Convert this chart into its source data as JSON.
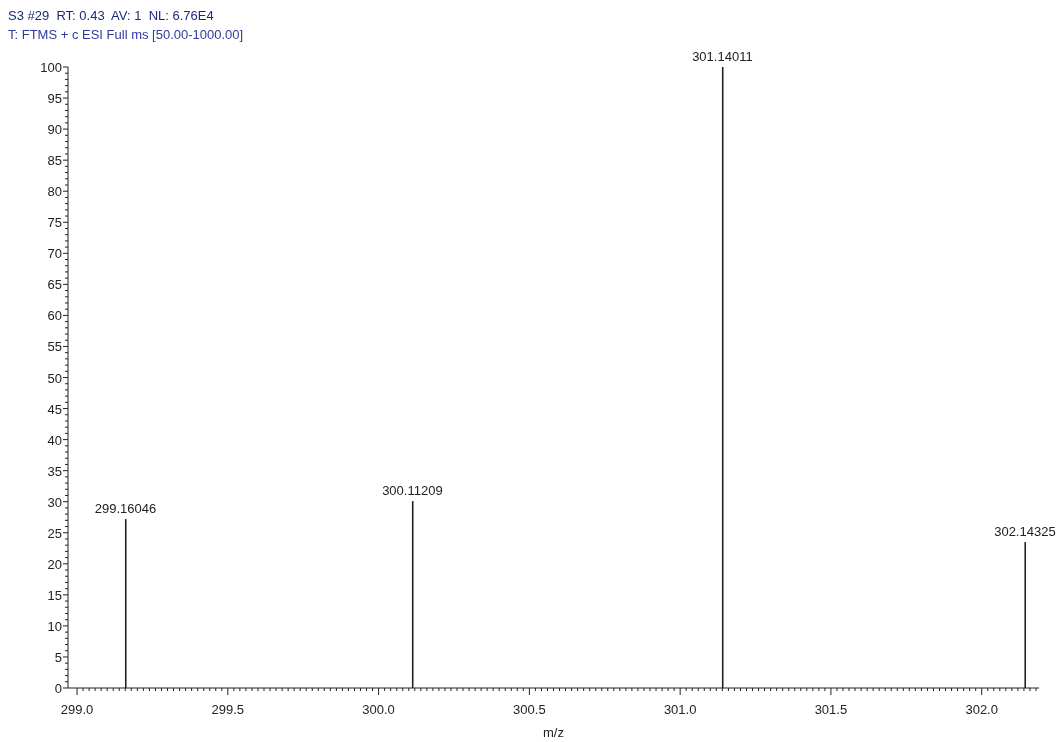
{
  "chart_data": {
    "type": "bar",
    "title": "S3 #29  RT: 0.43  AV: 1  NL: 6.76E4",
    "subtitle": "T: FTMS + c ESI Full ms [50.00-1000.00]",
    "xlabel": "m/z",
    "x": [
      299.16046,
      300.11209,
      301.14011,
      302.14325
    ],
    "values": [
      27.2,
      30.1,
      100,
      23.5
    ],
    "color": "#222222",
    "xlim": [
      298.97,
      302.19
    ],
    "xticks": [
      {
        "value": 299,
        "label": "299.0"
      },
      {
        "value": 299.02,
        "label": null
      },
      {
        "value": 299.04,
        "label": null
      },
      {
        "value": 299.06,
        "label": null
      },
      {
        "value": 299.08,
        "label": null
      },
      {
        "value": 299.1,
        "label": null
      },
      {
        "value": 299.12,
        "label": null
      },
      {
        "value": 299.14,
        "label": null
      },
      {
        "value": 299.16,
        "label": null
      },
      {
        "value": 299.18,
        "label": null
      },
      {
        "value": 299.2,
        "label": null
      },
      {
        "value": 299.22,
        "label": null
      },
      {
        "value": 299.24,
        "label": null
      },
      {
        "value": 299.26,
        "label": null
      },
      {
        "value": 299.28,
        "label": null
      },
      {
        "value": 299.3,
        "label": null
      },
      {
        "value": 299.32,
        "label": null
      },
      {
        "value": 299.34,
        "label": null
      },
      {
        "value": 299.36,
        "label": null
      },
      {
        "value": 299.38,
        "label": null
      },
      {
        "value": 299.4,
        "label": null
      },
      {
        "value": 299.42,
        "label": null
      },
      {
        "value": 299.44,
        "label": null
      },
      {
        "value": 299.46,
        "label": null
      },
      {
        "value": 299.48,
        "label": null
      },
      {
        "value": 299.5,
        "label": "299.5"
      },
      {
        "value": 299.52,
        "label": null
      },
      {
        "value": 299.54,
        "label": null
      },
      {
        "value": 299.56,
        "label": null
      },
      {
        "value": 299.58,
        "label": null
      },
      {
        "value": 299.6,
        "label": null
      },
      {
        "value": 299.62,
        "label": null
      },
      {
        "value": 299.64,
        "label": null
      },
      {
        "value": 299.66,
        "label": null
      },
      {
        "value": 299.68,
        "label": null
      },
      {
        "value": 299.7,
        "label": null
      },
      {
        "value": 299.72,
        "label": null
      },
      {
        "value": 299.74,
        "label": null
      },
      {
        "value": 299.76,
        "label": null
      },
      {
        "value": 299.78,
        "label": null
      },
      {
        "value": 299.8,
        "label": null
      },
      {
        "value": 299.82,
        "label": null
      },
      {
        "value": 299.84,
        "label": null
      },
      {
        "value": 299.86,
        "label": null
      },
      {
        "value": 299.88,
        "label": null
      },
      {
        "value": 299.9,
        "label": null
      },
      {
        "value": 299.92,
        "label": null
      },
      {
        "value": 299.94,
        "label": null
      },
      {
        "value": 299.96,
        "label": null
      },
      {
        "value": 299.98,
        "label": null
      },
      {
        "value": 300,
        "label": "300.0"
      },
      {
        "value": 300.02,
        "label": null
      },
      {
        "value": 300.04,
        "label": null
      },
      {
        "value": 300.06,
        "label": null
      },
      {
        "value": 300.08,
        "label": null
      },
      {
        "value": 300.1,
        "label": null
      },
      {
        "value": 300.12,
        "label": null
      },
      {
        "value": 300.14,
        "label": null
      },
      {
        "value": 300.16,
        "label": null
      },
      {
        "value": 300.18,
        "label": null
      },
      {
        "value": 300.2,
        "label": null
      },
      {
        "value": 300.22,
        "label": null
      },
      {
        "value": 300.24,
        "label": null
      },
      {
        "value": 300.26,
        "label": null
      },
      {
        "value": 300.28,
        "label": null
      },
      {
        "value": 300.3,
        "label": null
      },
      {
        "value": 300.32,
        "label": null
      },
      {
        "value": 300.34,
        "label": null
      },
      {
        "value": 300.36,
        "label": null
      },
      {
        "value": 300.38,
        "label": null
      },
      {
        "value": 300.4,
        "label": null
      },
      {
        "value": 300.42,
        "label": null
      },
      {
        "value": 300.44,
        "label": null
      },
      {
        "value": 300.46,
        "label": null
      },
      {
        "value": 300.48,
        "label": null
      },
      {
        "value": 300.5,
        "label": "300.5"
      },
      {
        "value": 300.52,
        "label": null
      },
      {
        "value": 300.54,
        "label": null
      },
      {
        "value": 300.56,
        "label": null
      },
      {
        "value": 300.58,
        "label": null
      },
      {
        "value": 300.6,
        "label": null
      },
      {
        "value": 300.62,
        "label": null
      },
      {
        "value": 300.64,
        "label": null
      },
      {
        "value": 300.66,
        "label": null
      },
      {
        "value": 300.68,
        "label": null
      },
      {
        "value": 300.7,
        "label": null
      },
      {
        "value": 300.72,
        "label": null
      },
      {
        "value": 300.74,
        "label": null
      },
      {
        "value": 300.76,
        "label": null
      },
      {
        "value": 300.78,
        "label": null
      },
      {
        "value": 300.8,
        "label": null
      },
      {
        "value": 300.82,
        "label": null
      },
      {
        "value": 300.84,
        "label": null
      },
      {
        "value": 300.86,
        "label": null
      },
      {
        "value": 300.88,
        "label": null
      },
      {
        "value": 300.9,
        "label": null
      },
      {
        "value": 300.92,
        "label": null
      },
      {
        "value": 300.94,
        "label": null
      },
      {
        "value": 300.96,
        "label": null
      },
      {
        "value": 300.98,
        "label": null
      },
      {
        "value": 301,
        "label": "301.0"
      },
      {
        "value": 301.02,
        "label": null
      },
      {
        "value": 301.04,
        "label": null
      },
      {
        "value": 301.06,
        "label": null
      },
      {
        "value": 301.08,
        "label": null
      },
      {
        "value": 301.1,
        "label": null
      },
      {
        "value": 301.12,
        "label": null
      },
      {
        "value": 301.14,
        "label": null
      },
      {
        "value": 301.16,
        "label": null
      },
      {
        "value": 301.18,
        "label": null
      },
      {
        "value": 301.2,
        "label": null
      },
      {
        "value": 301.22,
        "label": null
      },
      {
        "value": 301.24,
        "label": null
      },
      {
        "value": 301.26,
        "label": null
      },
      {
        "value": 301.28,
        "label": null
      },
      {
        "value": 301.3,
        "label": null
      },
      {
        "value": 301.32,
        "label": null
      },
      {
        "value": 301.34,
        "label": null
      },
      {
        "value": 301.36,
        "label": null
      },
      {
        "value": 301.38,
        "label": null
      },
      {
        "value": 301.4,
        "label": null
      },
      {
        "value": 301.42,
        "label": null
      },
      {
        "value": 301.44,
        "label": null
      },
      {
        "value": 301.46,
        "label": null
      },
      {
        "value": 301.48,
        "label": null
      },
      {
        "value": 301.5,
        "label": "301.5"
      },
      {
        "value": 301.52,
        "label": null
      },
      {
        "value": 301.54,
        "label": null
      },
      {
        "value": 301.56,
        "label": null
      },
      {
        "value": 301.58,
        "label": null
      },
      {
        "value": 301.6,
        "label": null
      },
      {
        "value": 301.62,
        "label": null
      },
      {
        "value": 301.64,
        "label": null
      },
      {
        "value": 301.66,
        "label": null
      },
      {
        "value": 301.68,
        "label": null
      },
      {
        "value": 301.7,
        "label": null
      },
      {
        "value": 301.72,
        "label": null
      },
      {
        "value": 301.74,
        "label": null
      },
      {
        "value": 301.76,
        "label": null
      },
      {
        "value": 301.78,
        "label": null
      },
      {
        "value": 301.8,
        "label": null
      },
      {
        "value": 301.82,
        "label": null
      },
      {
        "value": 301.84,
        "label": null
      },
      {
        "value": 301.86,
        "label": null
      },
      {
        "value": 301.88,
        "label": null
      },
      {
        "value": 301.9,
        "label": null
      },
      {
        "value": 301.92,
        "label": null
      },
      {
        "value": 301.94,
        "label": null
      },
      {
        "value": 301.96,
        "label": null
      },
      {
        "value": 301.98,
        "label": null
      },
      {
        "value": 302,
        "label": "302.0"
      },
      {
        "value": 302.02,
        "label": null
      },
      {
        "value": 302.04,
        "label": null
      },
      {
        "value": 302.06,
        "label": null
      },
      {
        "value": 302.08,
        "label": null
      },
      {
        "value": 302.1,
        "label": null
      },
      {
        "value": 302.12,
        "label": null
      },
      {
        "value": 302.14,
        "label": null
      },
      {
        "value": 302.16,
        "label": null
      },
      {
        "value": 302.18,
        "label": null
      }
    ],
    "ylim": [
      0,
      100
    ],
    "yticks": [
      0,
      {
        "value": 1,
        "label": null
      },
      {
        "value": 2,
        "label": null
      },
      {
        "value": 3,
        "label": null
      },
      {
        "value": 4,
        "label": null
      },
      5,
      {
        "value": 6,
        "label": null
      },
      {
        "value": 7,
        "label": null
      },
      {
        "value": 8,
        "label": null
      },
      {
        "value": 9,
        "label": null
      },
      10,
      {
        "value": 11,
        "label": null
      },
      {
        "value": 12,
        "label": null
      },
      {
        "value": 13,
        "label": null
      },
      {
        "value": 14,
        "label": null
      },
      15,
      {
        "value": 16,
        "label": null
      },
      {
        "value": 17,
        "label": null
      },
      {
        "value": 18,
        "label": null
      },
      {
        "value": 19,
        "label": null
      },
      20,
      {
        "value": 21,
        "label": null
      },
      {
        "value": 22,
        "label": null
      },
      {
        "value": 23,
        "label": null
      },
      {
        "value": 24,
        "label": null
      },
      25,
      {
        "value": 26,
        "label": null
      },
      {
        "value": 27,
        "label": null
      },
      {
        "value": 28,
        "label": null
      },
      {
        "value": 29,
        "label": null
      },
      30,
      {
        "value": 31,
        "label": null
      },
      {
        "value": 32,
        "label": null
      },
      {
        "value": 33,
        "label": null
      },
      {
        "value": 34,
        "label": null
      },
      35,
      {
        "value": 36,
        "label": null
      },
      {
        "value": 37,
        "label": null
      },
      {
        "value": 38,
        "label": null
      },
      {
        "value": 39,
        "label": null
      },
      40,
      {
        "value": 41,
        "label": null
      },
      {
        "value": 42,
        "label": null
      },
      {
        "value": 43,
        "label": null
      },
      {
        "value": 44,
        "label": null
      },
      45,
      {
        "value": 46,
        "label": null
      },
      {
        "value": 47,
        "label": null
      },
      {
        "value": 48,
        "label": null
      },
      {
        "value": 49,
        "label": null
      },
      50,
      {
        "value": 51,
        "label": null
      },
      {
        "value": 52,
        "label": null
      },
      {
        "value": 53,
        "label": null
      },
      {
        "value": 54,
        "label": null
      },
      55,
      {
        "value": 56,
        "label": null
      },
      {
        "value": 57,
        "label": null
      },
      {
        "value": 58,
        "label": null
      },
      {
        "value": 59,
        "label": null
      },
      60,
      {
        "value": 61,
        "label": null
      },
      {
        "value": 62,
        "label": null
      },
      {
        "value": 63,
        "label": null
      },
      {
        "value": 64,
        "label": null
      },
      65,
      {
        "value": 66,
        "label": null
      },
      {
        "value": 67,
        "label": null
      },
      {
        "value": 68,
        "label": null
      },
      {
        "value": 69,
        "label": null
      },
      70,
      {
        "value": 71,
        "label": null
      },
      {
        "value": 72,
        "label": null
      },
      {
        "value": 73,
        "label": null
      },
      {
        "value": 74,
        "label": null
      },
      75,
      {
        "value": 76,
        "label": null
      },
      {
        "value": 77,
        "label": null
      },
      {
        "value": 78,
        "label": null
      },
      {
        "value": 79,
        "label": null
      },
      80,
      {
        "value": 81,
        "label": null
      },
      {
        "value": 82,
        "label": null
      },
      {
        "value": 83,
        "label": null
      },
      {
        "value": 84,
        "label": null
      },
      85,
      {
        "value": 86,
        "label": null
      },
      {
        "value": 87,
        "label": null
      },
      {
        "value": 88,
        "label": null
      },
      {
        "value": 89,
        "label": null
      },
      90,
      {
        "value": 91,
        "label": null
      },
      {
        "value": 92,
        "label": null
      },
      {
        "value": 93,
        "label": null
      },
      {
        "value": 94,
        "label": null
      },
      95,
      {
        "value": 96,
        "label": null
      },
      {
        "value": 97,
        "label": null
      },
      {
        "value": 98,
        "label": null
      },
      {
        "value": 99,
        "label": null
      },
      100
    ],
    "annotations": [
      {
        "text": "299.16046",
        "x": 299.16046,
        "y": 27.2
      },
      {
        "text": "300.11209",
        "x": 300.11209,
        "y": 30.1
      },
      {
        "text": "301.14011",
        "x": 301.14011,
        "y": 100
      },
      {
        "text": "302.14325",
        "x": 302.14325,
        "y": 23.5
      }
    ]
  }
}
